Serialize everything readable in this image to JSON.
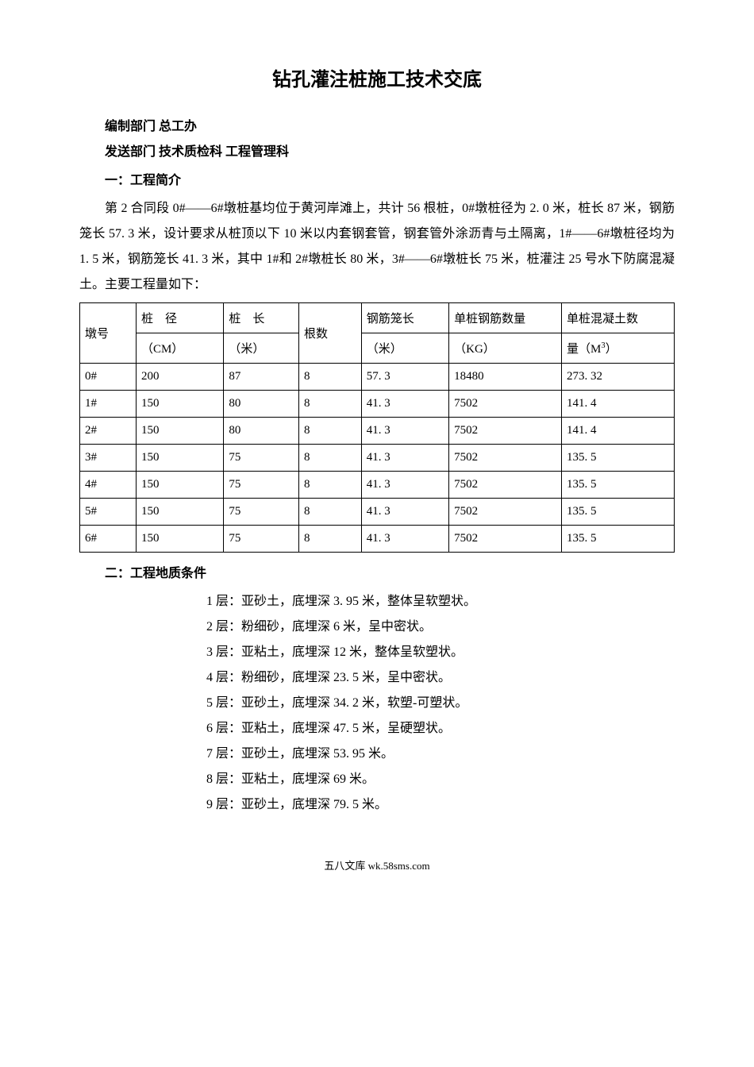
{
  "title": "钻孔灌注桩施工技术交底",
  "meta": {
    "author_dept_label": "编制部门",
    "author_dept_value": "总工办",
    "send_dept_label": "发送部门",
    "send_dept_value": "技术质检科 工程管理科"
  },
  "section1": {
    "heading": "一：工程简介",
    "paragraph": "第 2 合同段 0#——6#墩桩基均位于黄河岸滩上，共计 56 根桩，0#墩桩径为 2. 0 米，桩长 87 米，钢筋笼长 57. 3 米，设计要求从桩顶以下 10 米以内套钢套管，钢套管外涂沥青与土隔离，1#——6#墩桩径均为 1. 5 米，钢筋笼长 41. 3 米，其中 1#和 2#墩桩长 80 米，3#——6#墩桩长 75 米，桩灌注 25 号水下防腐混凝土。主要工程量如下："
  },
  "table": {
    "headers": {
      "pier": "墩号",
      "diameter": "桩　径",
      "length": "桩　长",
      "count": "根数",
      "cage": "钢筋笼长",
      "rebar": "单桩钢筋数量",
      "concrete": "单桩混凝土数"
    },
    "units": {
      "diameter": "（CM）",
      "length": "（米）",
      "cage": "（米）",
      "rebar": "（KG）",
      "concrete_prefix": "量（M",
      "concrete_sup": "3",
      "concrete_suffix": "）"
    },
    "rows": [
      {
        "pier": "0#",
        "diameter": "200",
        "length": "87",
        "count": "8",
        "cage": "57. 3",
        "rebar": "18480",
        "concrete": "273. 32"
      },
      {
        "pier": "1#",
        "diameter": "150",
        "length": "80",
        "count": "8",
        "cage": "41. 3",
        "rebar": "7502",
        "concrete": "141. 4"
      },
      {
        "pier": "2#",
        "diameter": "150",
        "length": "80",
        "count": "8",
        "cage": "41. 3",
        "rebar": "7502",
        "concrete": "141. 4"
      },
      {
        "pier": "3#",
        "diameter": "150",
        "length": "75",
        "count": "8",
        "cage": "41. 3",
        "rebar": "7502",
        "concrete": "135. 5"
      },
      {
        "pier": "4#",
        "diameter": "150",
        "length": "75",
        "count": "8",
        "cage": "41. 3",
        "rebar": "7502",
        "concrete": "135. 5"
      },
      {
        "pier": "5#",
        "diameter": "150",
        "length": "75",
        "count": "8",
        "cage": "41. 3",
        "rebar": "7502",
        "concrete": "135. 5"
      },
      {
        "pier": "6#",
        "diameter": "150",
        "length": "75",
        "count": "8",
        "cage": "41. 3",
        "rebar": "7502",
        "concrete": "135. 5"
      }
    ]
  },
  "section2": {
    "heading": "二：工程地质条件",
    "layers": [
      "1 层：亚砂土，底埋深 3. 95 米，整体呈软塑状。",
      "2 层：粉细砂，底埋深 6 米，呈中密状。",
      "3 层：亚粘土，底埋深 12 米，整体呈软塑状。",
      "4 层：粉细砂，底埋深 23. 5 米，呈中密状。",
      "5 层：亚砂土，底埋深 34. 2 米，软塑-可塑状。",
      "6 层：亚粘土，底埋深 47. 5 米，呈硬塑状。",
      "7 层：亚砂土，底埋深 53. 95 米。",
      "8 层：亚粘土，底埋深 69 米。",
      "9 层：亚砂土，底埋深 79. 5 米。"
    ]
  },
  "footer": "五八文库 wk.58sms.com"
}
